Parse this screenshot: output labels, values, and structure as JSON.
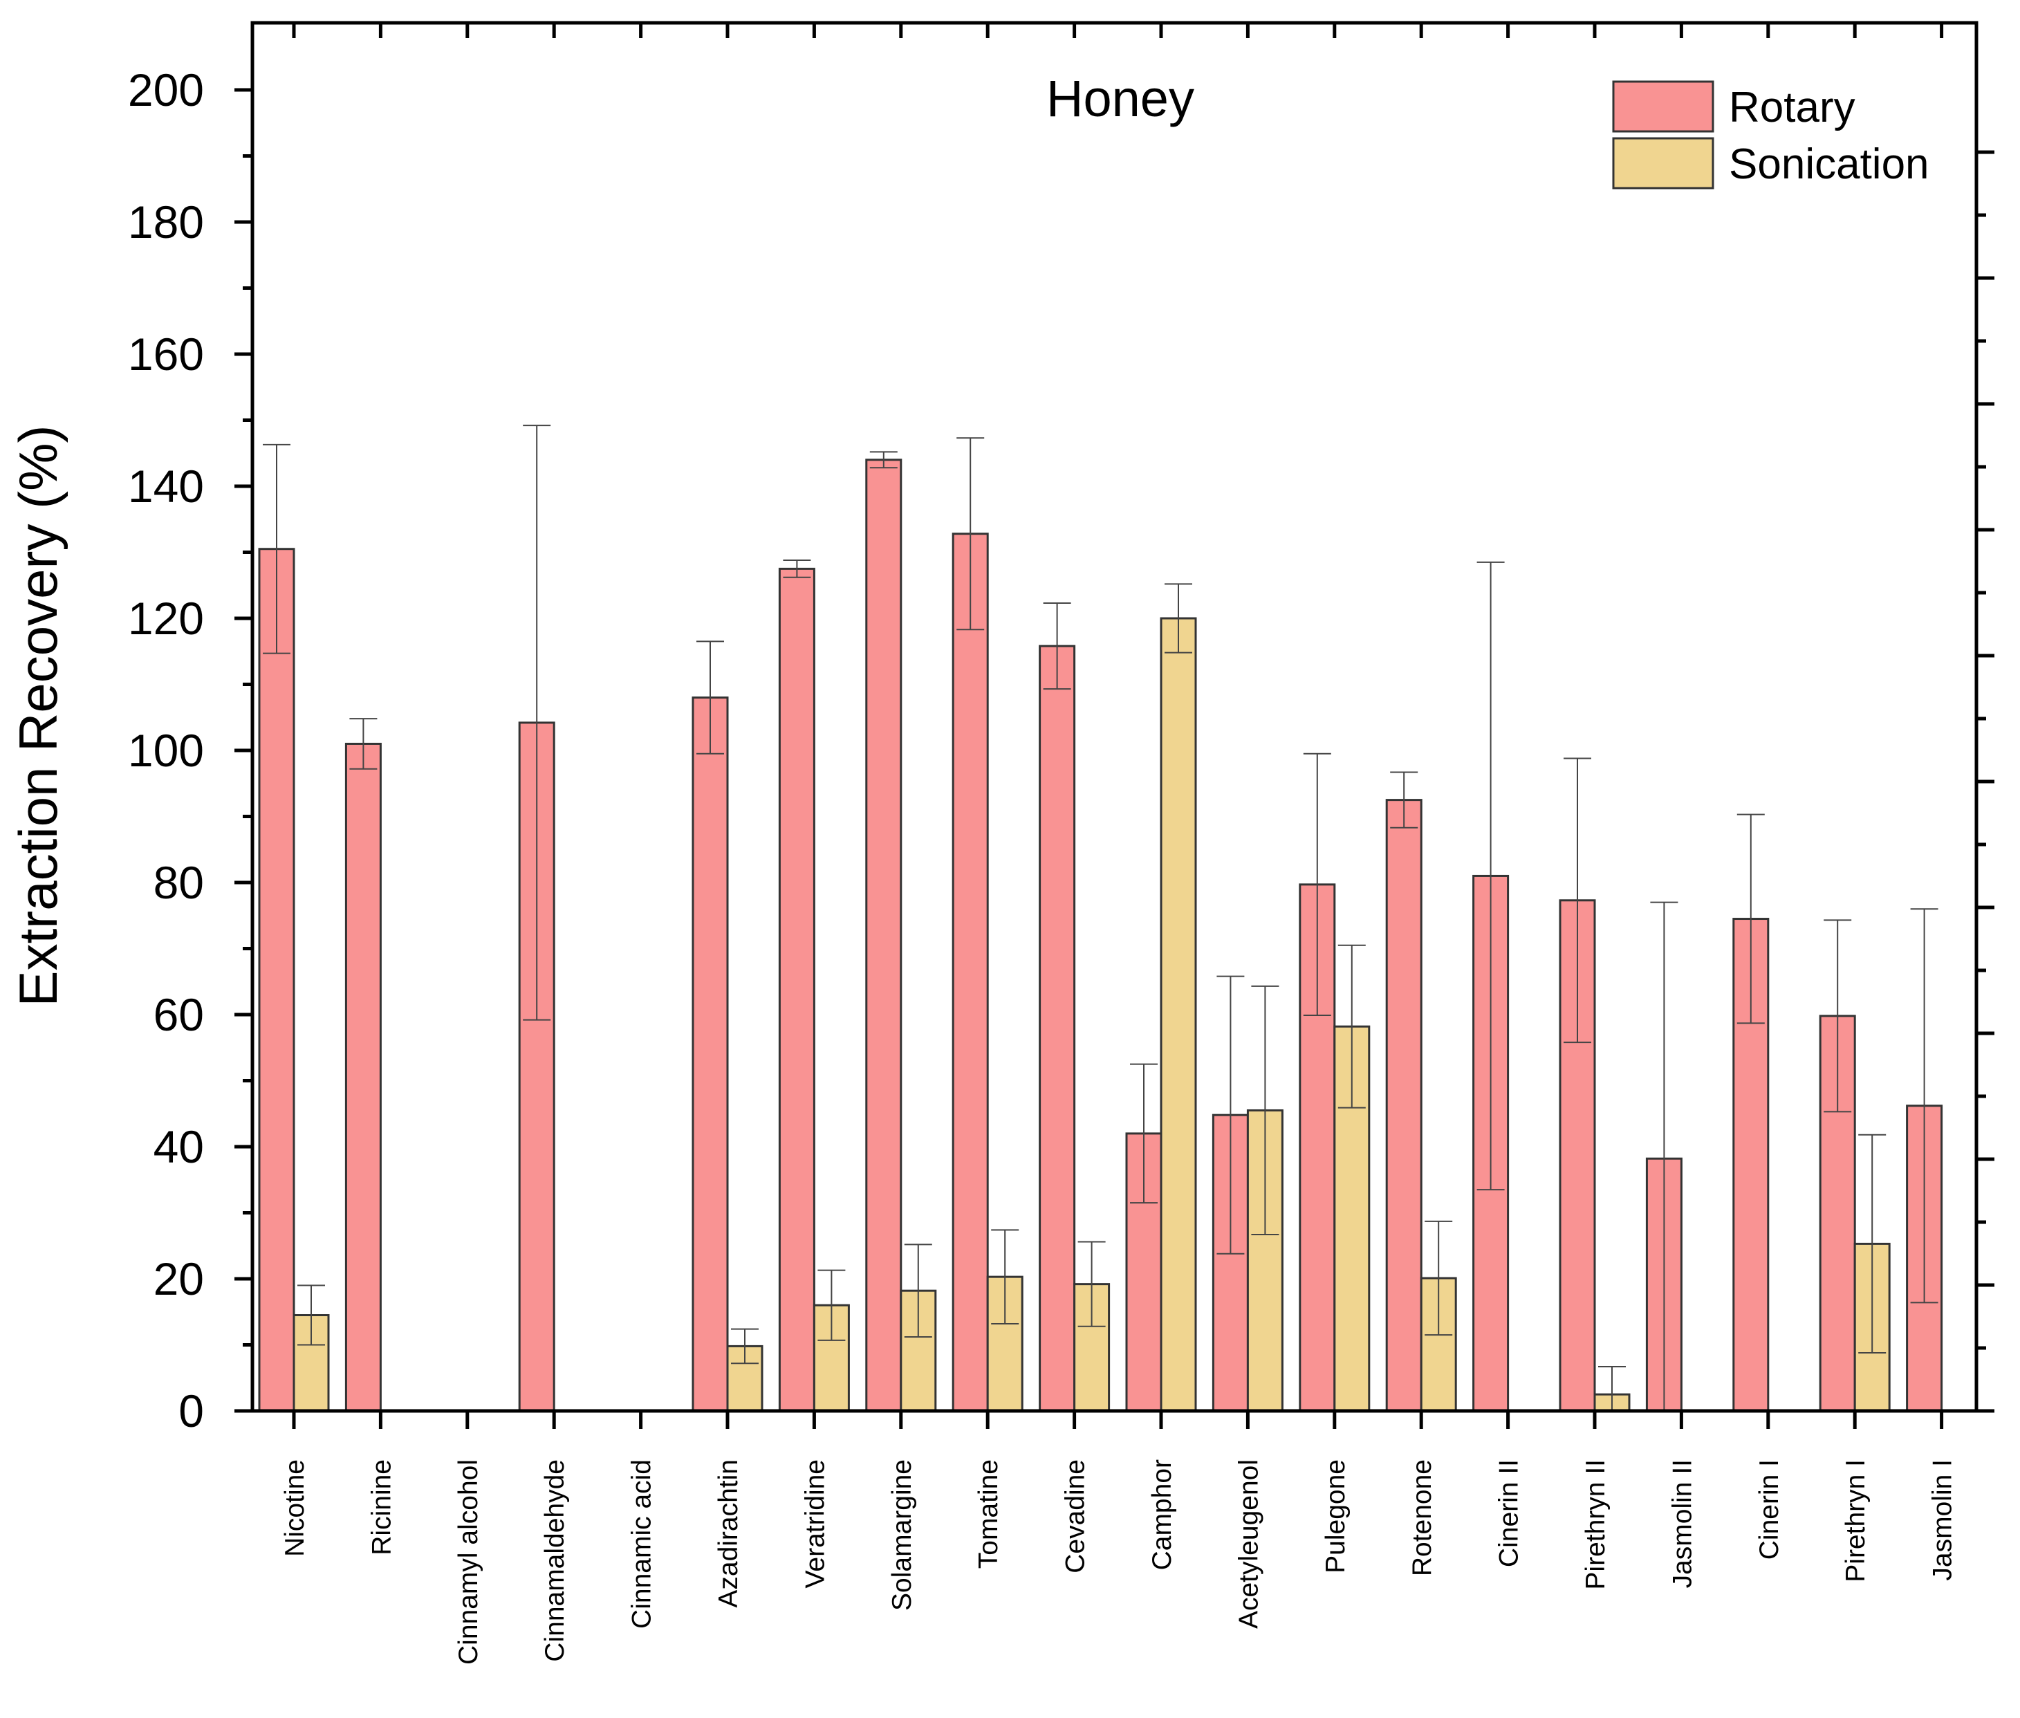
{
  "chart_data": {
    "type": "bar",
    "title": "Honey",
    "xlabel": "",
    "ylabel": "Extraction Recovery (%)",
    "ylim": [
      0,
      200
    ],
    "yticks": [
      0,
      20,
      40,
      60,
      80,
      100,
      120,
      140,
      160,
      180,
      200
    ],
    "categories": [
      "Nicotine",
      "Ricinine",
      "Cinnamyl alcohol",
      "Cinnamaldehyde",
      "Cinnamic acid",
      "Azadirachtin",
      "Veratridine",
      "Solamargine",
      "Tomatine",
      "Cevadine",
      "Camphor",
      "Acetyleugenol",
      "Pulegone",
      "Rotenone",
      "Cinerin II",
      "Pirethryn II",
      "Jasmolin II",
      "Cinerin I",
      "Pirethryn I",
      "Jasmolin I"
    ],
    "legend_position": "top-right",
    "series": [
      {
        "name": "Rotary",
        "color": "#f99393",
        "values": [
          130.5,
          101,
          null,
          104.2,
          null,
          108,
          127.5,
          144,
          132.8,
          115.8,
          42,
          44.8,
          79.7,
          92.5,
          81,
          77.3,
          38.2,
          74.5,
          59.8,
          46.2
        ],
        "errors": [
          15.8,
          3.8,
          null,
          45,
          null,
          8.5,
          1.3,
          1.2,
          14.5,
          6.5,
          10.5,
          21,
          19.8,
          4.2,
          47.5,
          21.5,
          38.8,
          15.8,
          14.5,
          29.8
        ]
      },
      {
        "name": "Sonication",
        "color": "#f0d590",
        "values": [
          14.5,
          null,
          null,
          null,
          null,
          9.8,
          16,
          18.2,
          20.3,
          19.2,
          120,
          45.5,
          58.2,
          20.1,
          null,
          2.5,
          null,
          null,
          25.3,
          null
        ],
        "errors": [
          4.5,
          null,
          null,
          null,
          null,
          2.6,
          5.3,
          7,
          7.1,
          6.4,
          5.2,
          18.8,
          12.3,
          8.6,
          null,
          4.2,
          null,
          null,
          16.5,
          null
        ]
      }
    ]
  }
}
